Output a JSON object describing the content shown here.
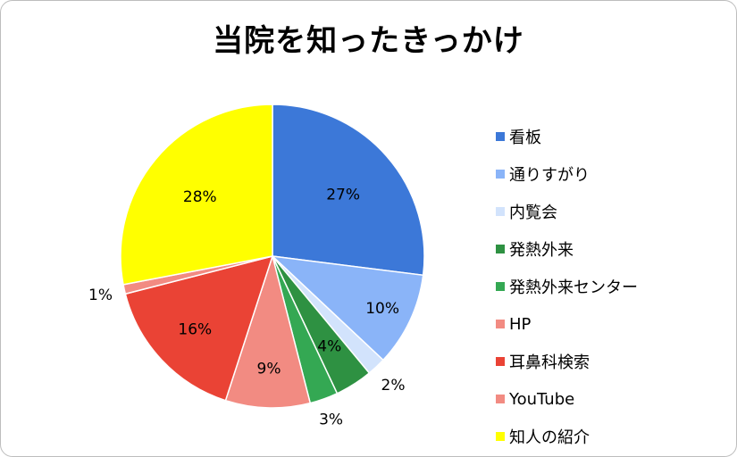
{
  "chart_data": {
    "type": "pie",
    "title": "当院を知ったきっかけ",
    "slices": [
      {
        "label": "看板",
        "value": 27,
        "display": "27%",
        "color": "#3c78d8"
      },
      {
        "label": "通りすがり",
        "value": 10,
        "display": "10%",
        "color": "#8ab4f8"
      },
      {
        "label": "内覧会",
        "value": 2,
        "display": "2%",
        "color": "#d2e3fc"
      },
      {
        "label": "発熱外来",
        "value": 4,
        "display": "4%",
        "color": "#2e9142"
      },
      {
        "label": "発熱外来センター",
        "value": 3,
        "display": "3%",
        "color": "#34a853"
      },
      {
        "label": "HP",
        "value": 9,
        "display": "9%",
        "color": "#f28b82"
      },
      {
        "label": "耳鼻科検索",
        "value": 16,
        "display": "16%",
        "color": "#ea4335"
      },
      {
        "label": "YouTube",
        "value": 1,
        "display": "1%",
        "color": "#f28b82"
      },
      {
        "label": "知人の紹介",
        "value": 28,
        "display": "28%",
        "color": "#ffff00"
      }
    ],
    "legend_position": "right"
  }
}
